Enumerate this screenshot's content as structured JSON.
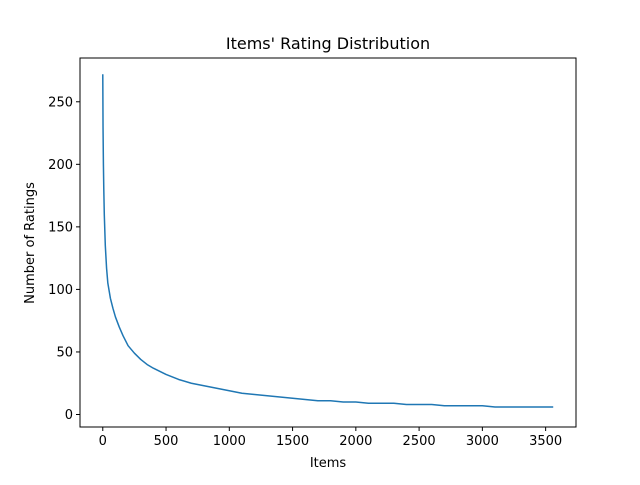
{
  "chart_data": {
    "type": "line",
    "title": "Items' Rating Distribution",
    "xlabel": "Items",
    "ylabel": "Number of Ratings",
    "xlim": [
      -180,
      3740
    ],
    "ylim": [
      -10,
      285
    ],
    "xticks": [
      0,
      500,
      1000,
      1500,
      2000,
      2500,
      3000,
      3500
    ],
    "yticks": [
      0,
      50,
      100,
      150,
      200,
      250
    ],
    "grid": false,
    "legend": "none",
    "line_color": "#1f77b4",
    "series": [
      {
        "x": [
          0,
          2,
          5,
          8,
          12,
          20,
          30,
          40,
          60,
          80,
          100,
          130,
          160,
          190,
          200,
          250,
          300,
          350,
          400,
          500,
          600,
          700,
          800,
          900,
          1000,
          1100,
          1200,
          1300,
          1400,
          1500,
          1600,
          1700,
          1800,
          1900,
          2000,
          2100,
          2200,
          2300,
          2400,
          2500,
          2600,
          2700,
          2800,
          2900,
          3000,
          3100,
          3200,
          3300,
          3400,
          3500,
          3560
        ],
        "y": [
          272,
          230,
          200,
          180,
          160,
          135,
          117,
          105,
          93,
          85,
          78,
          70,
          63,
          57,
          55,
          49,
          44,
          40,
          37,
          32,
          28,
          25,
          23,
          21,
          19,
          17,
          16,
          15,
          14,
          13,
          12,
          11,
          11,
          10,
          10,
          9,
          9,
          9,
          8,
          8,
          8,
          7,
          7,
          7,
          7,
          6,
          6,
          6,
          6,
          6,
          6
        ]
      }
    ]
  }
}
